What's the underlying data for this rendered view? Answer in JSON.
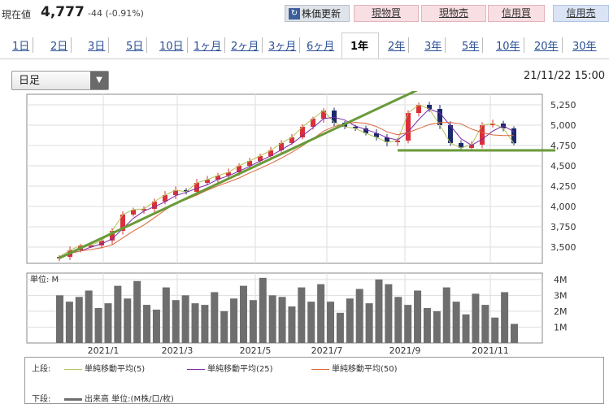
{
  "header": {
    "label": "現在値",
    "price": "4,777",
    "change": "-44 (-0.91%)",
    "update_button": "株価更新",
    "update_icon": "refresh-icon",
    "trade_buttons": [
      "現物買",
      "現物売",
      "信用買",
      "信用売"
    ]
  },
  "tabs": [
    "1日",
    "2日",
    "3日",
    "5日",
    "10日",
    "1ヶ月",
    "2ヶ月",
    "3ヶ月",
    "6ヶ月",
    "1年",
    "2年",
    "3年",
    "5年",
    "10年",
    "20年",
    "30年"
  ],
  "active_tab": "1年",
  "selector": {
    "value": "日足"
  },
  "timestamp": "21/11/22 15:00",
  "colors": {
    "up": "#d9303a",
    "down": "#1a2a6b",
    "ma5": "#b6c25a",
    "ma25": "#7a2aa8",
    "ma50": "#d9663a",
    "volume": "#6e6e6e",
    "trend": "#6a9a3a"
  },
  "legend": {
    "upper_label": "上段:",
    "lower_label": "下段:",
    "items": [
      "単純移動平均(5)",
      "単純移動平均(25)",
      "単純移動平均(50)"
    ],
    "volume_item": "出来高 単位:(M株/口/枚)"
  },
  "chart_data": [
    {
      "type": "candlestick",
      "x_ticks": [
        "2021/1",
        "2021/3",
        "2021/5",
        "2021/7",
        "2021/9",
        "2021/11"
      ],
      "y_ticks": [
        3500,
        3750,
        4000,
        4250,
        4500,
        4750,
        5000,
        5250
      ],
      "y_tick_labels": [
        "3,500",
        "3,750",
        "4,000",
        "4,250",
        "4,500",
        "4,750",
        "5,000",
        "5,250"
      ],
      "ylim": [
        3300,
        5380
      ],
      "close_approx": [
        3380,
        3460,
        3520,
        3520,
        3580,
        3700,
        3900,
        3960,
        3970,
        4060,
        4140,
        4200,
        4180,
        4290,
        4330,
        4380,
        4420,
        4500,
        4560,
        4620,
        4690,
        4780,
        4850,
        4980,
        5080,
        5180,
        5030,
        4980,
        4960,
        4900,
        4850,
        4790,
        4810,
        5150,
        5250,
        5200,
        5000,
        4780,
        4720,
        4760,
        5000,
        5020,
        4960,
        4777
      ],
      "series": [
        "単純移動平均(5)",
        "単純移動平均(25)",
        "単純移動平均(50)"
      ],
      "trendlines": "uptrend line and support line at 4,700"
    },
    {
      "type": "bar",
      "label": "単位: M",
      "y_ticks": [
        1,
        2,
        3,
        4
      ],
      "y_tick_labels": [
        "1M",
        "2M",
        "3M",
        "4M"
      ],
      "ylim": [
        0,
        4.4
      ],
      "volume_approx": [
        3.0,
        2.6,
        2.9,
        3.3,
        2.2,
        2.5,
        3.6,
        2.8,
        3.9,
        2.4,
        2.1,
        3.5,
        2.7,
        3.0,
        2.5,
        2.4,
        3.2,
        2.0,
        2.8,
        3.6,
        2.7,
        4.1,
        3.0,
        2.9,
        2.3,
        3.5,
        2.6,
        3.7,
        2.6,
        1.9,
        2.8,
        3.4,
        2.5,
        4.0,
        3.7,
        2.9,
        2.4,
        3.3,
        2.2,
        2.0,
        3.5,
        2.6,
        1.8,
        3.1,
        2.4,
        1.6,
        3.2,
        1.2
      ]
    }
  ]
}
